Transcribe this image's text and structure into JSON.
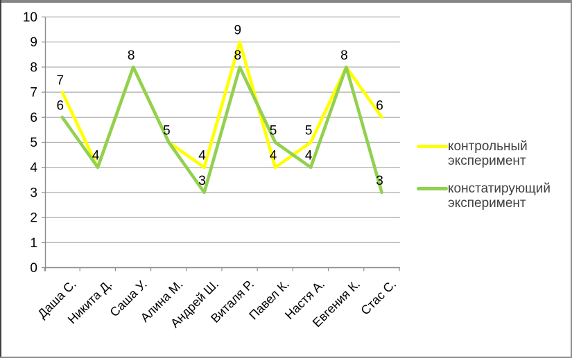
{
  "chart_data": {
    "type": "line",
    "title": "",
    "categories": [
      "Даша С.",
      "Никита Д.",
      "Саша У.",
      "Алина М.",
      "Андрей Ш.",
      "Виталя Р.",
      "Павел К.",
      "Настя А.",
      "Евгения К.",
      "Стас С."
    ],
    "series": [
      {
        "name": "контрольный эксперимент",
        "color": "#FFFF00",
        "values": [
          7,
          4,
          8,
          5,
          4,
          9,
          4,
          5,
          8,
          6
        ]
      },
      {
        "name": "констатирующий эксперимент",
        "color": "#92D050",
        "values": [
          6,
          4,
          8,
          5,
          3,
          8,
          5,
          4,
          8,
          3
        ]
      }
    ],
    "ylim": [
      0,
      10
    ],
    "ytick_step": 1,
    "yticks": [
      0,
      1,
      2,
      3,
      4,
      5,
      6,
      7,
      8,
      9,
      10
    ],
    "grid": true,
    "data_labels": true,
    "legend_position": "right",
    "grid_color": "#ababab",
    "axis_color": "#8c8c8c",
    "label_color": "#000000",
    "legend_text_color": "#404040"
  }
}
